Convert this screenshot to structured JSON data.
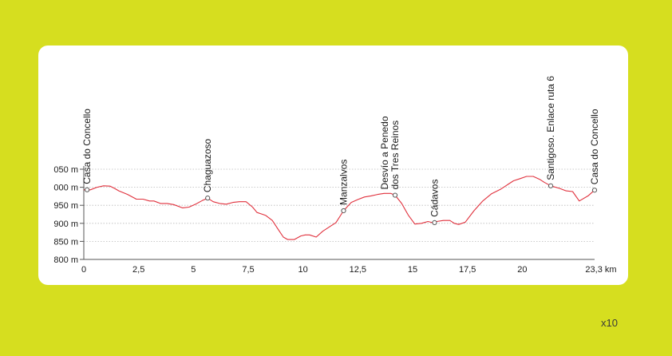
{
  "zoom_label": "x10",
  "chart_data": {
    "type": "line",
    "title": "",
    "xlabel": "",
    "ylabel": "",
    "x_unit": "km",
    "x_max_label": "23,3",
    "xlim": [
      0,
      23.3
    ],
    "ylim": [
      800,
      1050
    ],
    "y_ticks": [
      {
        "value": 1050,
        "label": "050 m"
      },
      {
        "value": 1000,
        "label": "000 m"
      },
      {
        "value": 950,
        "label": "950 m"
      },
      {
        "value": 900,
        "label": "900 m"
      },
      {
        "value": 850,
        "label": "850 m"
      },
      {
        "value": 800,
        "label": "800 m"
      }
    ],
    "x_ticks": [
      {
        "value": 0,
        "label": "0"
      },
      {
        "value": 2.5,
        "label": "2,5"
      },
      {
        "value": 5,
        "label": "5"
      },
      {
        "value": 7.5,
        "label": "7,5"
      },
      {
        "value": 10,
        "label": "10"
      },
      {
        "value": 12.5,
        "label": "12,5"
      },
      {
        "value": 15,
        "label": "15"
      },
      {
        "value": 17.5,
        "label": "17,5"
      },
      {
        "value": 20,
        "label": "20"
      },
      {
        "value": 23.3,
        "label": "23,3 km"
      }
    ],
    "line_color": "#e0303c",
    "series": [
      {
        "x": [
          0,
          0.3,
          0.6,
          0.9,
          1.2,
          1.4,
          1.6,
          2.0,
          2.4,
          2.7,
          3.0,
          3.2,
          3.5,
          3.8,
          4.1,
          4.5,
          4.8,
          5.1,
          5.4,
          5.65,
          5.9,
          6.2,
          6.5,
          6.8,
          7.1,
          7.4,
          7.7,
          7.9,
          8.1,
          8.3,
          8.6,
          8.9,
          9.1,
          9.3,
          9.6,
          9.9,
          10.1,
          10.3,
          10.6,
          10.9,
          11.2,
          11.5,
          11.85,
          12.2,
          12.5,
          12.8,
          13.1,
          13.4,
          13.7,
          14.0,
          14.2,
          14.5,
          14.8,
          15.1,
          15.4,
          15.7,
          15.9,
          16.1,
          16.4,
          16.7,
          16.9,
          17.1,
          17.4,
          17.8,
          18.2,
          18.6,
          19.0,
          19.3,
          19.6,
          19.9,
          20.2,
          20.5,
          20.8,
          21.0,
          21.3,
          21.7,
          22.0,
          22.3,
          22.6,
          23.0,
          23.3
        ],
        "y": [
          993,
          993,
          1000,
          1004,
          1003,
          997,
          990,
          980,
          967,
          967,
          962,
          962,
          955,
          955,
          952,
          943,
          945,
          953,
          963,
          970,
          960,
          955,
          953,
          958,
          960,
          960,
          945,
          930,
          926,
          922,
          908,
          880,
          862,
          855,
          855,
          865,
          868,
          868,
          862,
          878,
          890,
          902,
          935,
          958,
          966,
          973,
          976,
          980,
          983,
          983,
          978,
          955,
          923,
          898,
          900,
          905,
          902,
          905,
          908,
          908,
          900,
          897,
          903,
          935,
          962,
          982,
          994,
          1006,
          1018,
          1024,
          1030,
          1030,
          1022,
          1014,
          1004,
          997,
          990,
          988,
          962,
          976,
          992
        ]
      }
    ],
    "waypoints": [
      {
        "x": 0.15,
        "y": 993,
        "label": "Casa do Concello"
      },
      {
        "x": 5.65,
        "y": 970,
        "label": "Chaguazoso"
      },
      {
        "x": 11.85,
        "y": 935,
        "label": "Manzalvos"
      },
      {
        "x": 14.2,
        "y": 978,
        "label": "Desvío a Penedo dos Tres Reinos",
        "label_lines": [
          "Desvío a Penedo",
          "dos Tres Reinos"
        ]
      },
      {
        "x": 16.0,
        "y": 902,
        "label": "Cádavos"
      },
      {
        "x": 21.3,
        "y": 1004,
        "label": "Santigoso. Enlace ruta 6"
      },
      {
        "x": 23.3,
        "y": 992,
        "label": "Casa do Concello"
      }
    ]
  }
}
